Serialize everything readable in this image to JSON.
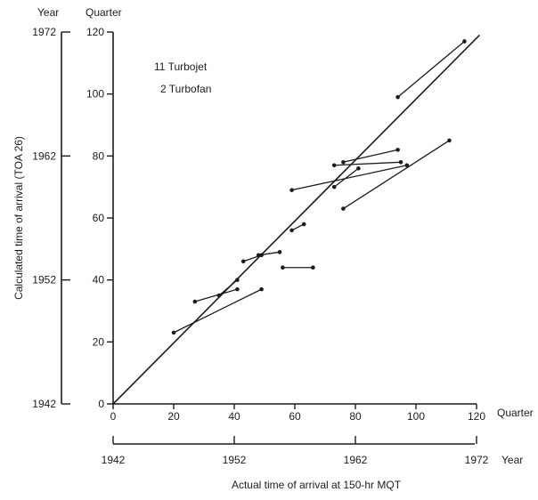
{
  "chart_data": {
    "type": "scatter",
    "title": "",
    "xlabel": "Actual time of arrival at 150-hr MQT",
    "ylabel": "Calculated time of arrival (TOA 26)",
    "x_axis_unit_label": "Quarter",
    "x_year_unit_label": "Year",
    "y_axis_unit_label": "Quarter",
    "y_year_unit_label": "Year",
    "xlim": [
      0,
      120
    ],
    "ylim": [
      0,
      120
    ],
    "x_ticks": [
      "0",
      "20",
      "40",
      "60",
      "80",
      "100",
      "120"
    ],
    "y_ticks": [
      "0",
      "20",
      "40",
      "60",
      "80",
      "100",
      "120"
    ],
    "x_year_ticks": [
      "1942",
      "1952",
      "1962",
      "1972"
    ],
    "y_year_ticks": [
      "1942",
      "1952",
      "1962",
      "1972"
    ],
    "legend": [
      "11 Turbojet",
      "2 Turbofan"
    ],
    "reference_line": {
      "from": [
        0,
        0
      ],
      "to": [
        121,
        119
      ]
    },
    "segments": [
      {
        "x1": 20,
        "y1": 23,
        "x2": 49,
        "y2": 37
      },
      {
        "x1": 27,
        "y1": 33,
        "x2": 41,
        "y2": 37
      },
      {
        "x1": 35,
        "y1": 35,
        "x2": 41,
        "y2": 40
      },
      {
        "x1": 43,
        "y1": 46,
        "x2": 49,
        "y2": 48
      },
      {
        "x1": 48,
        "y1": 48,
        "x2": 55,
        "y2": 49
      },
      {
        "x1": 56,
        "y1": 44,
        "x2": 66,
        "y2": 44
      },
      {
        "x1": 59,
        "y1": 56,
        "x2": 63,
        "y2": 58
      },
      {
        "x1": 59,
        "y1": 69,
        "x2": 97,
        "y2": 77
      },
      {
        "x1": 73,
        "y1": 70,
        "x2": 81,
        "y2": 76
      },
      {
        "x1": 73,
        "y1": 77,
        "x2": 95,
        "y2": 78
      },
      {
        "x1": 76,
        "y1": 78,
        "x2": 94,
        "y2": 82
      },
      {
        "x1": 76,
        "y1": 63,
        "x2": 111,
        "y2": 85
      },
      {
        "x1": 94,
        "y1": 99,
        "x2": 116,
        "y2": 117
      }
    ]
  }
}
